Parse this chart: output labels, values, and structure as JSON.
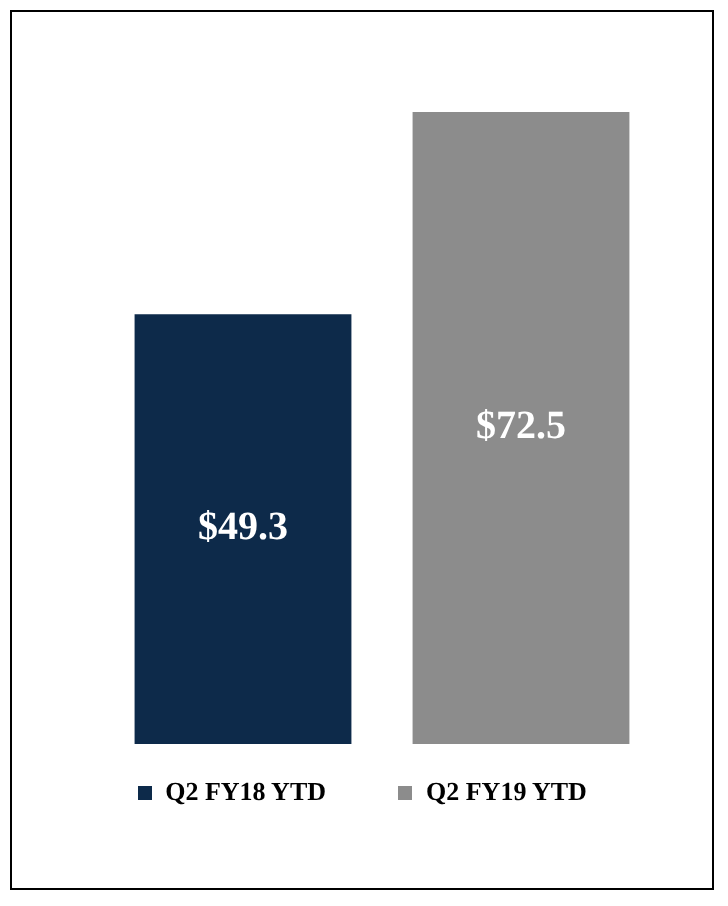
{
  "chart_data": {
    "type": "bar",
    "categories": [
      null
    ],
    "series": [
      {
        "name": "Q2 FY18 YTD",
        "color": "#0d2a4a",
        "values": [
          49.3
        ],
        "value_labels": [
          "$49.3"
        ]
      },
      {
        "name": "Q2 FY19 YTD",
        "color": "#8c8c8c",
        "values": [
          72.5
        ],
        "value_labels": [
          "$72.5"
        ]
      }
    ],
    "legend": "bottom"
  }
}
